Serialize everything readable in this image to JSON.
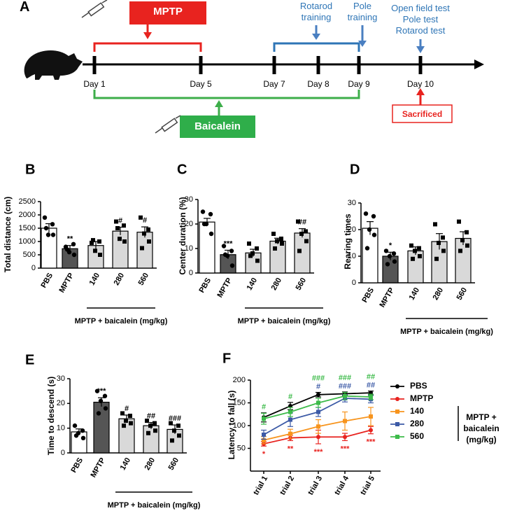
{
  "timeline": {
    "label": "A",
    "treatments": [
      "MPTP",
      "Baicalein"
    ],
    "trainings": [
      "Rotarod training",
      "Pole training"
    ],
    "tests": [
      "Open field test",
      "Pole test",
      "Rotarod test"
    ],
    "days": [
      "Day 1",
      "Day 5",
      "Day 7",
      "Day 8",
      "Day 9",
      "Day 10"
    ],
    "endpoint": "Sacrificed"
  },
  "chart_data": [
    {
      "type": "bar",
      "panel": "B",
      "y_label": "Total distance (cm)",
      "categories": [
        "PBS",
        "MPTP",
        "140",
        "280",
        "560"
      ],
      "values": [
        1500,
        730,
        850,
        1390,
        1350
      ],
      "errors": [
        170,
        120,
        150,
        150,
        200
      ],
      "points": [
        [
          1900,
          1650,
          1250,
          1250,
          1500
        ],
        [
          800,
          900,
          600,
          500,
          700
        ],
        [
          950,
          1000,
          650,
          500,
          1050
        ],
        [
          1750,
          1600,
          1100,
          1000,
          1500
        ],
        [
          1900,
          1450,
          1300,
          1000,
          750
        ]
      ],
      "annotations": [
        null,
        "**",
        null,
        "#",
        "#"
      ],
      "colors": [
        "#ffffff",
        "#555555",
        "#d9d9d9",
        "#d9d9d9",
        "#d9d9d9"
      ],
      "markers": [
        "circle",
        "circle",
        "square",
        "square",
        "square"
      ],
      "group_label": "MPTP + baicalein (mg/kg)",
      "ylim": [
        0,
        2500
      ],
      "yticks": [
        0,
        500,
        1000,
        1500,
        2000,
        2500
      ]
    },
    {
      "type": "bar",
      "panel": "C",
      "y_label": "Center duration (%)",
      "categories": [
        "PBS",
        "MPTP",
        "140",
        "280",
        "560"
      ],
      "values": [
        20.8,
        7.5,
        8.2,
        13,
        16.3
      ],
      "errors": [
        1.5,
        1.8,
        1.5,
        1.2,
        1.8
      ],
      "points": [
        [
          25,
          24,
          20,
          16,
          20
        ],
        [
          11,
          9,
          7,
          3,
          7.5
        ],
        [
          12,
          10,
          8,
          5,
          7
        ],
        [
          16,
          14,
          13,
          12,
          10
        ],
        [
          21,
          17,
          16,
          13,
          9
        ]
      ],
      "annotations": [
        null,
        "***",
        null,
        null,
        "##"
      ],
      "colors": [
        "#ffffff",
        "#555555",
        "#d9d9d9",
        "#d9d9d9",
        "#d9d9d9"
      ],
      "markers": [
        "circle",
        "circle",
        "square",
        "square",
        "square"
      ],
      "group_label": "MPTP + baicalein (mg/kg)",
      "ylim": [
        0,
        30
      ],
      "yticks": [
        0,
        10,
        20,
        30
      ]
    },
    {
      "type": "bar",
      "panel": "D",
      "y_label": "Rearing times",
      "categories": [
        "PBS",
        "MPTP",
        "140",
        "280",
        "560"
      ],
      "values": [
        20.5,
        10,
        12,
        15.5,
        16.7
      ],
      "errors": [
        2.5,
        1.5,
        1.5,
        3,
        2.5
      ],
      "points": [
        [
          26,
          25,
          20,
          18,
          13
        ],
        [
          12,
          11,
          10,
          8,
          7
        ],
        [
          14,
          13,
          12,
          10,
          9
        ],
        [
          22,
          17,
          15,
          12,
          9
        ],
        [
          23,
          19,
          16,
          14,
          12
        ]
      ],
      "annotations": [
        null,
        "*",
        null,
        null,
        null
      ],
      "colors": [
        "#ffffff",
        "#555555",
        "#d9d9d9",
        "#d9d9d9",
        "#d9d9d9"
      ],
      "markers": [
        "circle",
        "circle",
        "square",
        "square",
        "square"
      ],
      "group_label": "MPTP + baicalein (mg/kg)",
      "ylim": [
        0,
        30
      ],
      "yticks": [
        0,
        10,
        20,
        30
      ]
    },
    {
      "type": "bar",
      "panel": "E",
      "y_label": "Time to descend (s)",
      "categories": [
        "PBS",
        "MPTP",
        "140",
        "280",
        "560"
      ],
      "values": [
        8.5,
        20.5,
        13.8,
        11,
        9.5
      ],
      "errors": [
        1.2,
        1.8,
        1.5,
        1.3,
        1.8
      ],
      "points": [
        [
          11,
          9,
          8,
          6,
          7
        ],
        [
          25,
          23,
          21,
          18,
          16
        ],
        [
          16,
          15,
          13,
          12,
          11
        ],
        [
          13,
          12,
          11,
          9,
          8
        ],
        [
          12,
          11,
          9,
          7,
          5
        ]
      ],
      "annotations": [
        null,
        "***",
        "#",
        "##",
        "###"
      ],
      "colors": [
        "#ffffff",
        "#555555",
        "#d9d9d9",
        "#d9d9d9",
        "#d9d9d9"
      ],
      "markers": [
        "circle",
        "circle",
        "square",
        "square",
        "square"
      ],
      "group_label": "MPTP + baicalein (mg/kg)",
      "ylim": [
        0,
        30
      ],
      "yticks": [
        0,
        10,
        20,
        30
      ]
    },
    {
      "type": "line",
      "panel": "F",
      "y_label": "Latency to fall (s)",
      "categories": [
        "trial 1",
        "trial 2",
        "trial 3",
        "trial 4",
        "trial 5"
      ],
      "series": [
        {
          "name": "PBS",
          "color": "#000000",
          "marker": "circle",
          "values": [
            118,
            143,
            168,
            170,
            172
          ],
          "errors": [
            10,
            8,
            5,
            4,
            4
          ],
          "annotations": [
            null,
            null,
            null,
            null,
            null
          ]
        },
        {
          "name": "MPTP",
          "color": "#e8231f",
          "marker": "circle",
          "values": [
            60,
            73,
            75,
            75,
            90
          ],
          "errors": [
            5,
            6,
            15,
            8,
            8
          ],
          "annotations": [
            "*",
            "**",
            "***",
            "***",
            "***"
          ]
        },
        {
          "name": "140",
          "color": "#f7941d",
          "marker": "square",
          "values": [
            68,
            82,
            98,
            110,
            120
          ],
          "errors": [
            8,
            10,
            15,
            20,
            20
          ],
          "annotations": [
            null,
            null,
            null,
            null,
            null
          ]
        },
        {
          "name": "280",
          "color": "#3c5aa6",
          "marker": "square",
          "values": [
            80,
            113,
            130,
            160,
            158
          ],
          "errors": [
            10,
            15,
            10,
            8,
            8
          ],
          "annotations": [
            null,
            null,
            "#",
            "###",
            "##"
          ]
        },
        {
          "name": "560",
          "color": "#3dbb4a",
          "marker": "square",
          "values": [
            115,
            130,
            150,
            165,
            163
          ],
          "errors": [
            12,
            10,
            10,
            8,
            6
          ],
          "annotations": [
            "#",
            "#",
            "###",
            "###",
            "##"
          ]
        }
      ],
      "legend_group": "MPTP + baicalein (mg/kg)",
      "ylim": [
        0,
        200
      ],
      "yticks": [
        50,
        100,
        150,
        200
      ]
    }
  ]
}
